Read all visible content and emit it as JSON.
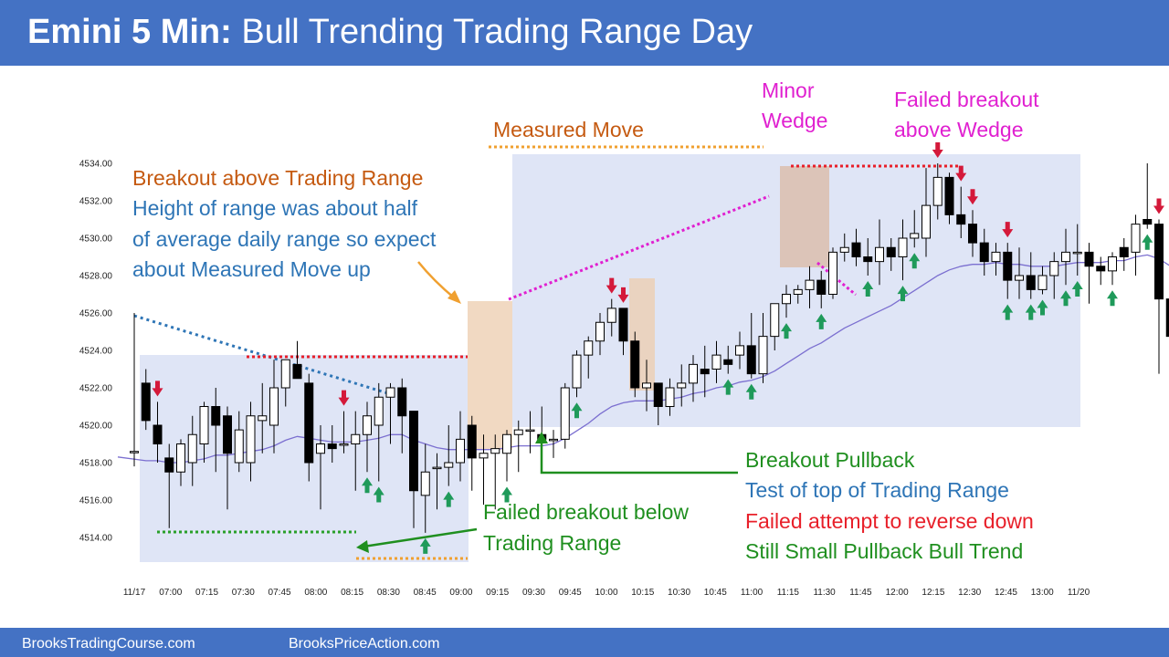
{
  "header": {
    "title_bold": "Emini 5 Min:",
    "title_rest": "Bull Trending Trading Range Day"
  },
  "footer": {
    "left": "BrooksTradingCourse.com",
    "right": "BrooksPriceAction.com"
  },
  "colors": {
    "header_bg": "#4472c4",
    "bull_candle": "#ffffff",
    "bear_candle": "#000000",
    "ema": "#7b6fd0",
    "buy_arrow": "#1f9a5a",
    "sell_arrow": "#d4193a",
    "orange_text": "#c55a11",
    "blue_text": "#2e75b6",
    "green_text": "#1f8f1f",
    "red_text": "#e8202a",
    "magenta_text": "#e020d0",
    "range_box": "#dfe5f6",
    "highlight_box": "#f1d9c2"
  },
  "chart_data": {
    "type": "candlestick",
    "title": "Bull Trending Trading Range Day",
    "y_ticks": [
      "4514.00",
      "4516.00",
      "4518.00",
      "4520.00",
      "4522.00",
      "4524.00",
      "4526.00",
      "4528.00",
      "4530.00",
      "4532.00",
      "4534.00"
    ],
    "ylim": [
      4512.7,
      4535.0
    ],
    "x_ticks": [
      "11/17",
      "07:00",
      "07:15",
      "07:30",
      "07:45",
      "08:00",
      "08:15",
      "08:30",
      "08:45",
      "09:00",
      "09:15",
      "09:30",
      "09:45",
      "10:00",
      "10:15",
      "10:30",
      "10:45",
      "11:00",
      "11:15",
      "11:30",
      "11:45",
      "12:00",
      "12:15",
      "12:30",
      "12:45",
      "13:00",
      "11/20"
    ],
    "candles_ohlc": [
      [
        4518.6,
        4526.0,
        4517.8,
        4518.6
      ],
      [
        4522.25,
        4523.0,
        4519.75,
        4520.25
      ],
      [
        4520.0,
        4521.25,
        4518.0,
        4519.0
      ],
      [
        4518.25,
        4519.0,
        4514.5,
        4517.5
      ],
      [
        4517.5,
        4519.25,
        4516.75,
        4519.0
      ],
      [
        4518.0,
        4520.5,
        4516.75,
        4519.5
      ],
      [
        4519.0,
        4521.25,
        4518.0,
        4521.0
      ],
      [
        4521.0,
        4522.0,
        4517.5,
        4520.0
      ],
      [
        4520.5,
        4521.0,
        4515.5,
        4518.5
      ],
      [
        4518.0,
        4520.75,
        4517.5,
        4519.75
      ],
      [
        4518.0,
        4521.25,
        4517.0,
        4520.5
      ],
      [
        4520.25,
        4522.25,
        4518.5,
        4520.5
      ],
      [
        4520.0,
        4523.5,
        4518.5,
        4522.0
      ],
      [
        4522.0,
        4523.5,
        4521.0,
        4523.5
      ],
      [
        4523.25,
        4524.5,
        4522.5,
        4522.5
      ],
      [
        4522.25,
        4522.75,
        4517.0,
        4518.0
      ],
      [
        4518.5,
        4520.0,
        4515.5,
        4519.0
      ],
      [
        4519.0,
        4520.0,
        4518.0,
        4518.75
      ],
      [
        4519.0,
        4520.75,
        4518.5,
        4519.0
      ],
      [
        4519.0,
        4520.75,
        4516.5,
        4519.5
      ],
      [
        4519.5,
        4521.25,
        4517.5,
        4520.5
      ],
      [
        4520.0,
        4522.25,
        4517.0,
        4521.5
      ],
      [
        4521.5,
        4522.25,
        4519.0,
        4522.0
      ],
      [
        4522.0,
        4522.5,
        4518.5,
        4520.5
      ],
      [
        4520.75,
        4520.75,
        4514.5,
        4516.5
      ],
      [
        4516.25,
        4519.0,
        4514.25,
        4517.5
      ],
      [
        4517.75,
        4518.5,
        4515.5,
        4517.75
      ],
      [
        4517.75,
        4520.0,
        4516.75,
        4518.0
      ],
      [
        4518.0,
        4520.75,
        4517.0,
        4519.25
      ],
      [
        4520.0,
        4520.5,
        4516.5,
        4518.25
      ],
      [
        4518.25,
        4519.5,
        4515.75,
        4518.5
      ],
      [
        4518.5,
        4519.5,
        4515.5,
        4518.75
      ],
      [
        4518.5,
        4519.75,
        4517.0,
        4519.5
      ],
      [
        4519.5,
        4520.25,
        4517.5,
        4519.75
      ],
      [
        4519.75,
        4520.75,
        4518.5,
        4519.75
      ],
      [
        4519.5,
        4521.0,
        4518.0,
        4519.25
      ],
      [
        4519.25,
        4519.75,
        4518.25,
        4519.25
      ],
      [
        4519.25,
        4522.25,
        4518.75,
        4522.0
      ],
      [
        4522.0,
        4524.0,
        4521.5,
        4523.75
      ],
      [
        4523.75,
        4524.75,
        4522.5,
        4524.5
      ],
      [
        4524.5,
        4526.0,
        4523.75,
        4525.5
      ],
      [
        4525.5,
        4526.75,
        4524.75,
        4526.25
      ],
      [
        4526.25,
        4526.25,
        4523.75,
        4524.5
      ],
      [
        4524.5,
        4525.0,
        4521.5,
        4522.0
      ],
      [
        4522.0,
        4523.5,
        4520.75,
        4522.25
      ],
      [
        4522.25,
        4522.25,
        4520.0,
        4521.0
      ],
      [
        4521.0,
        4522.5,
        4520.5,
        4522.0
      ],
      [
        4522.0,
        4523.25,
        4521.0,
        4522.25
      ],
      [
        4522.25,
        4523.75,
        4521.25,
        4523.25
      ],
      [
        4523.0,
        4524.25,
        4521.5,
        4522.75
      ],
      [
        4523.0,
        4524.5,
        4522.25,
        4523.75
      ],
      [
        4523.5,
        4524.25,
        4522.75,
        4523.25
      ],
      [
        4523.75,
        4525.0,
        4523.0,
        4524.25
      ],
      [
        4524.25,
        4526.0,
        4522.5,
        4522.75
      ],
      [
        4522.75,
        4526.0,
        4522.25,
        4524.75
      ],
      [
        4524.75,
        4526.5,
        4524.0,
        4526.5
      ],
      [
        4526.5,
        4527.5,
        4525.75,
        4527.0
      ],
      [
        4527.0,
        4527.5,
        4526.5,
        4527.25
      ],
      [
        4527.25,
        4528.5,
        4526.25,
        4527.75
      ],
      [
        4527.75,
        4528.25,
        4526.25,
        4527.0
      ],
      [
        4527.0,
        4529.5,
        4526.75,
        4529.25
      ],
      [
        4529.25,
        4530.25,
        4528.75,
        4529.5
      ],
      [
        4529.75,
        4530.5,
        4528.5,
        4529.0
      ],
      [
        4529.0,
        4530.0,
        4528.0,
        4528.75
      ],
      [
        4528.75,
        4531.0,
        4527.5,
        4529.5
      ],
      [
        4529.5,
        4530.0,
        4528.25,
        4529.0
      ],
      [
        4529.0,
        4531.0,
        4527.75,
        4530.0
      ],
      [
        4530.0,
        4531.5,
        4529.5,
        4530.25
      ],
      [
        4530.0,
        4533.75,
        4529.0,
        4531.75
      ],
      [
        4531.75,
        4534.0,
        4531.0,
        4533.25
      ],
      [
        4533.25,
        4533.5,
        4530.75,
        4531.25
      ],
      [
        4531.25,
        4532.75,
        4530.0,
        4530.75
      ],
      [
        4530.75,
        4531.5,
        4529.0,
        4529.75
      ],
      [
        4529.75,
        4530.5,
        4528.0,
        4528.75
      ],
      [
        4528.75,
        4529.75,
        4528.0,
        4529.25
      ],
      [
        4529.25,
        4529.75,
        4526.75,
        4527.75
      ],
      [
        4527.75,
        4529.5,
        4526.75,
        4528.0
      ],
      [
        4528.0,
        4529.25,
        4526.75,
        4527.25
      ],
      [
        4527.25,
        4528.5,
        4527.0,
        4528.0
      ],
      [
        4528.0,
        4529.25,
        4526.75,
        4528.75
      ],
      [
        4528.75,
        4530.5,
        4527.5,
        4529.25
      ],
      [
        4529.25,
        4530.75,
        4528.0,
        4529.25
      ],
      [
        4529.25,
        4529.75,
        4526.5,
        4528.5
      ],
      [
        4528.5,
        4529.0,
        4527.5,
        4528.25
      ],
      [
        4528.25,
        4529.25,
        4527.5,
        4529.0
      ],
      [
        4529.5,
        4530.0,
        4528.25,
        4529.0
      ],
      [
        4529.25,
        4531.25,
        4528.0,
        4530.75
      ],
      [
        4531.0,
        4534.0,
        4530.5,
        4530.75
      ],
      [
        4530.75,
        4531.0,
        4522.75,
        4526.75
      ],
      [
        4526.75,
        4527.0,
        4523.0,
        4524.75
      ],
      [
        4524.75,
        4525.0,
        4522.25,
        4523.25
      ],
      [
        4523.25,
        4524.0,
        4522.25,
        4522.75
      ],
      [
        4522.75,
        4526.25,
        4522.5,
        4526.25
      ],
      [
        4526.25,
        4528.75,
        4526.0,
        4528.0
      ],
      [
        4528.0,
        4528.75,
        4526.25,
        4527.0
      ],
      [
        4526.75,
        4527.25,
        4525.0,
        4525.5
      ]
    ],
    "ema_points": [
      4518.3,
      4518.1,
      4518.1,
      4518.0,
      4518.0,
      4518.1,
      4518.2,
      4518.4,
      4518.4,
      4518.5,
      4518.6,
      4518.7,
      4518.9,
      4519.2,
      4519.4,
      4519.3,
      4519.2,
      4519.1,
      4519.1,
      4519.1,
      4519.2,
      4519.3,
      4519.5,
      4519.5,
      4519.2,
      4519.0,
      4518.8,
      4518.7,
      4518.7,
      4518.7,
      4518.7,
      4518.7,
      4518.8,
      4518.9,
      4518.9,
      4518.9,
      4519.0,
      4519.3,
      4519.7,
      4520.1,
      4520.6,
      4521.0,
      4521.2,
      4521.3,
      4521.3,
      4521.3,
      4521.4,
      4521.5,
      4521.7,
      4521.8,
      4522.0,
      4522.1,
      4522.3,
      4522.4,
      4522.6,
      4522.9,
      4523.3,
      4523.7,
      4524.1,
      4524.4,
      4524.8,
      4525.2,
      4525.5,
      4525.8,
      4526.1,
      4526.4,
      4526.8,
      4527.2,
      4527.6,
      4528.0,
      4528.3,
      4528.5,
      4528.6,
      4528.6,
      4528.7,
      4528.6,
      4528.6,
      4528.5,
      4528.5,
      4528.5,
      4528.6,
      4528.7,
      4528.7,
      4528.7,
      4528.8,
      4528.8,
      4529.0,
      4529.1,
      4528.9,
      4528.5,
      4528.0,
      4527.6,
      4527.5,
      4527.6,
      4527.6,
      4527.4
    ],
    "buy_arrow_bars": [
      20,
      21,
      25,
      27,
      32,
      38,
      51,
      53,
      56,
      59,
      63,
      66,
      67,
      75,
      77,
      78,
      80,
      81,
      84,
      87
    ],
    "sell_arrow_bars": [
      2,
      18,
      41,
      42,
      69,
      71,
      72,
      75,
      88
    ],
    "annotations": {
      "breakout_orange": "Breakout above Trading Range",
      "breakout_blue_1": "Height of range was about half",
      "breakout_blue_2": "of average daily range so expect",
      "breakout_blue_3": "about Measured Move up",
      "measured_move": "Measured Move",
      "minor_wedge_1": "Minor",
      "minor_wedge_2": "Wedge",
      "failed_above_1": "Failed breakout",
      "failed_above_2": "above Wedge",
      "failed_below_1": "Failed breakout below",
      "failed_below_2": "Trading Range",
      "pb_1": "Breakout Pullback",
      "pb_2": "Test of top of Trading Range",
      "pb_3": "Failed attempt to reverse down",
      "pb_4": "Still Small Pullback Bull Trend"
    }
  }
}
